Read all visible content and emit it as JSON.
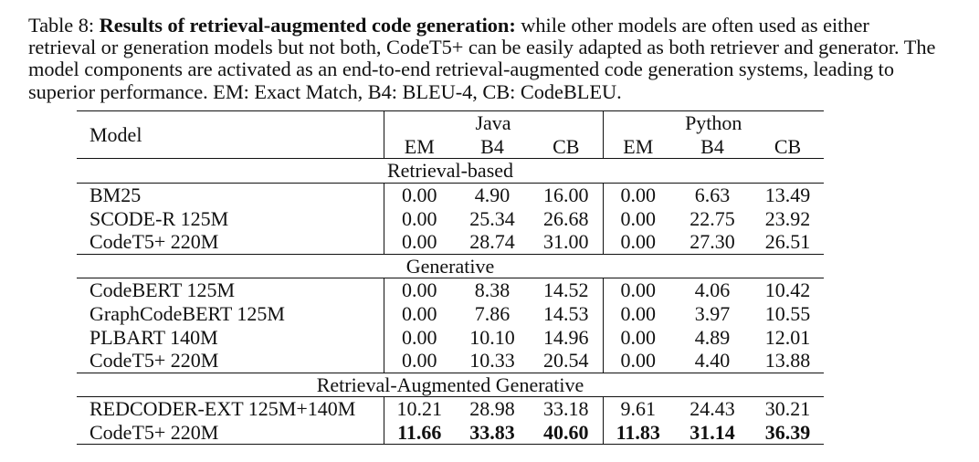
{
  "caption": {
    "prefix": "Table 8: ",
    "title": "Results of retrieval-augmented code generation:",
    "body": " while other models are often used as either retrieval or generation models but not both, CodeT5+ can be easily adapted as both retriever and generator. The model components are activated as an end-to-end retrieval-augmented code generation systems, leading to superior performance. EM: Exact Match, B4: BLEU-4, CB: CodeBLEU."
  },
  "table": {
    "model_header": "Model",
    "groups": [
      "Java",
      "Python"
    ],
    "metrics": [
      "EM",
      "B4",
      "CB",
      "EM",
      "B4",
      "CB"
    ],
    "sections": [
      {
        "title": "Retrieval-based",
        "rows": [
          {
            "model": "BM25",
            "values": [
              "0.00",
              "4.90",
              "16.00",
              "0.00",
              "6.63",
              "13.49"
            ]
          },
          {
            "model": "SCODE-R 125M",
            "values": [
              "0.00",
              "25.34",
              "26.68",
              "0.00",
              "22.75",
              "23.92"
            ]
          },
          {
            "model": "CodeT5+ 220M",
            "values": [
              "0.00",
              "28.74",
              "31.00",
              "0.00",
              "27.30",
              "26.51"
            ]
          }
        ]
      },
      {
        "title": "Generative",
        "rows": [
          {
            "model": "CodeBERT 125M",
            "values": [
              "0.00",
              "8.38",
              "14.52",
              "0.00",
              "4.06",
              "10.42"
            ]
          },
          {
            "model": "GraphCodeBERT 125M",
            "values": [
              "0.00",
              "7.86",
              "14.53",
              "0.00",
              "3.97",
              "10.55"
            ]
          },
          {
            "model": "PLBART 140M",
            "values": [
              "0.00",
              "10.10",
              "14.96",
              "0.00",
              "4.89",
              "12.01"
            ]
          },
          {
            "model": "CodeT5+ 220M",
            "values": [
              "0.00",
              "10.33",
              "20.54",
              "0.00",
              "4.40",
              "13.88"
            ]
          }
        ]
      },
      {
        "title": "Retrieval-Augmented Generative",
        "rows": [
          {
            "model": "REDCODER-EXT 125M+140M",
            "values": [
              "10.21",
              "28.98",
              "33.18",
              "9.61",
              "24.43",
              "30.21"
            ]
          },
          {
            "model": "CodeT5+ 220M",
            "values": [
              "11.66",
              "33.83",
              "40.60",
              "11.83",
              "31.14",
              "36.39"
            ],
            "bold": true
          }
        ]
      }
    ]
  }
}
